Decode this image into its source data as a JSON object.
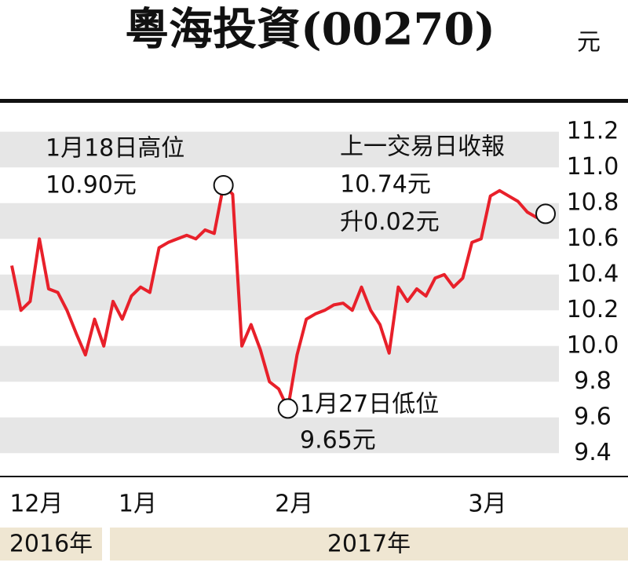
{
  "chart_data": {
    "type": "line",
    "title": "粵海投資(00270)",
    "unit": "元",
    "categories": [
      null,
      null,
      "12月",
      null,
      null,
      null,
      null,
      null,
      null,
      null,
      null,
      null,
      null,
      "1月",
      null,
      null,
      null,
      null,
      null,
      null,
      null,
      null,
      null,
      null,
      null,
      null,
      null,
      null,
      null,
      null,
      "2月",
      null,
      null,
      null,
      null,
      null,
      null,
      null,
      null,
      null,
      null,
      null,
      null,
      null,
      null,
      null,
      null,
      null,
      null,
      null,
      null,
      "3月",
      null,
      null,
      null,
      null,
      null,
      null,
      null
    ],
    "values": [
      10.45,
      10.2,
      10.25,
      10.6,
      10.32,
      10.3,
      10.2,
      10.07,
      9.95,
      10.15,
      10.0,
      10.25,
      10.15,
      10.28,
      10.33,
      10.3,
      10.55,
      10.58,
      10.6,
      10.62,
      10.6,
      10.65,
      10.63,
      10.9,
      10.85,
      10.0,
      10.12,
      9.98,
      9.8,
      9.76,
      9.65,
      9.95,
      10.15,
      10.18,
      10.2,
      10.23,
      10.24,
      10.2,
      10.33,
      10.2,
      10.12,
      9.96,
      10.33,
      10.25,
      10.32,
      10.28,
      10.38,
      10.4,
      10.33,
      10.38,
      10.58,
      10.6,
      10.84,
      10.87,
      10.84,
      10.81,
      10.75,
      10.72,
      10.74
    ],
    "color": "#e8202a",
    "ylim": [
      9.3,
      11.3
    ],
    "yticks": [
      {
        "value": 9.4,
        "label": "9.4"
      },
      {
        "value": 9.6,
        "label": "9.6"
      },
      {
        "value": 9.8,
        "label": "9.8"
      },
      {
        "value": 10.0,
        "label": "10.0"
      },
      {
        "value": 10.2,
        "label": "10.2"
      },
      {
        "value": 10.4,
        "label": "10.4"
      },
      {
        "value": 10.6,
        "label": "10.6"
      },
      {
        "value": 10.8,
        "label": "10.8"
      },
      {
        "value": 11.0,
        "label": "11.0"
      },
      {
        "value": 11.2,
        "label": "11.2"
      }
    ],
    "year_labels": [
      "2016年",
      "2017年"
    ],
    "annotations": {
      "high": [
        "1月18日高位",
        "10.90元"
      ],
      "low": [
        "1月27日低位",
        "9.65元"
      ],
      "last": [
        "上一交易日收報",
        "10.74元",
        "升0.02元"
      ]
    }
  }
}
